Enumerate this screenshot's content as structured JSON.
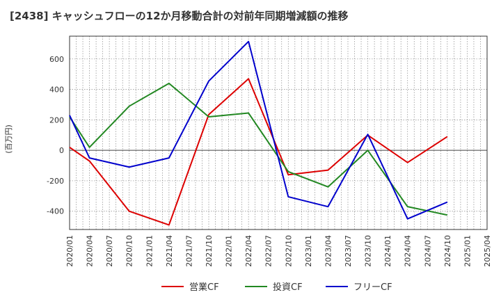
{
  "chart_data": {
    "type": "line",
    "title": "[2438]  キャッシュフローの12か月移動合計の対前年同期増減額の推移",
    "xlabel": "",
    "ylabel": "(百万円)",
    "ylim": [
      -520,
      750
    ],
    "yticks": [
      -400,
      -200,
      0,
      200,
      400,
      600
    ],
    "x": [
      "2020/01",
      "2020/04",
      "2020/07",
      "2020/10",
      "2021/01",
      "2021/04",
      "2021/07",
      "2021/10",
      "2022/01",
      "2022/04",
      "2022/07",
      "2022/10",
      "2023/01",
      "2023/04",
      "2023/07",
      "2023/10",
      "2024/01",
      "2024/04",
      "2024/07",
      "2024/10",
      "2025/01",
      "2025/04"
    ],
    "series": [
      {
        "name": "営業CF",
        "color": "#dd0000",
        "values": [
          20,
          -70,
          null,
          -400,
          null,
          -490,
          null,
          235,
          null,
          470,
          null,
          -160,
          null,
          -130,
          null,
          100,
          null,
          -80,
          null,
          90,
          null,
          null
        ]
      },
      {
        "name": "投資CF",
        "color": "#228822",
        "values": [
          220,
          20,
          null,
          290,
          null,
          440,
          null,
          220,
          null,
          245,
          null,
          -140,
          null,
          -240,
          null,
          0,
          null,
          -370,
          null,
          -425,
          null,
          null
        ]
      },
      {
        "name": "フリーCF",
        "color": "#0000cc",
        "values": [
          230,
          -50,
          null,
          -110,
          null,
          -50,
          null,
          455,
          null,
          715,
          null,
          -305,
          null,
          -370,
          null,
          105,
          null,
          -450,
          null,
          -340,
          null,
          null
        ]
      }
    ],
    "grid": true,
    "legend": "bottom"
  }
}
